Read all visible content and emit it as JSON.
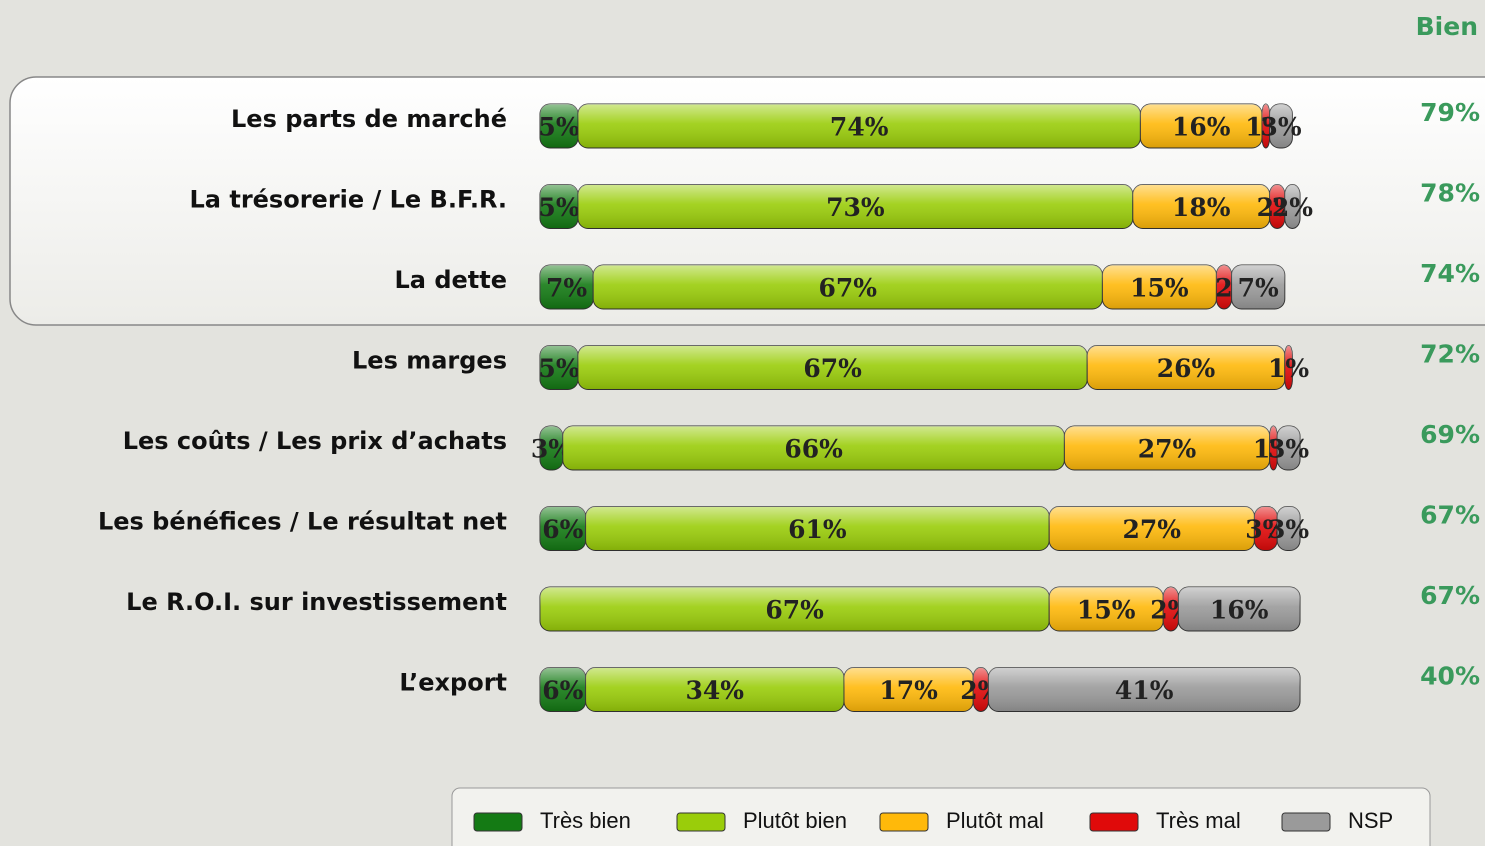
{
  "chart_data": {
    "type": "bar",
    "orientation": "horizontal",
    "stacked": true,
    "categories": [
      "Les parts de marché",
      "La trésorerie / Le B.F.R.",
      "La dette",
      "Les marges",
      "Les coûts / Les prix d’achats",
      "Les bénéfices / Le résultat net",
      "Le R.O.I. sur investissement",
      "L’export"
    ],
    "xlim": [
      0,
      100
    ],
    "series": [
      {
        "name": "Très bien",
        "color": "#147a14",
        "values": [
          5,
          5,
          7,
          5,
          3,
          6,
          null,
          6
        ],
        "value_labels": [
          "5%",
          "5%",
          "7%",
          "5%",
          "3%",
          "6%",
          null,
          "6%"
        ]
      },
      {
        "name": "Plutôt bien",
        "color": "#9acd0a",
        "values": [
          74,
          73,
          67,
          67,
          66,
          61,
          67,
          34
        ],
        "value_labels": [
          "74%",
          "73%",
          "67%",
          "67%",
          "66%",
          "61%",
          "67%",
          "34%"
        ]
      },
      {
        "name": "Plutôt mal",
        "color": "#ffb90a",
        "values": [
          16,
          18,
          15,
          26,
          27,
          27,
          15,
          17
        ],
        "value_labels": [
          "16%",
          "18%",
          "15%",
          "26%",
          "27%",
          "27%",
          "15%",
          "17%"
        ]
      },
      {
        "name": "Très mal",
        "color": "#e00a0a",
        "values": [
          1,
          2,
          2,
          1,
          1,
          3,
          2,
          2
        ],
        "value_labels": [
          "1%",
          "2%",
          "2",
          "1%",
          "1%",
          "3%",
          "2%",
          "2%"
        ]
      },
      {
        "name": "NSP",
        "color": "#9a9a9a",
        "values": [
          3,
          2,
          7,
          null,
          3,
          3,
          16,
          41
        ],
        "value_labels": [
          "3%",
          "2%",
          "7%",
          null,
          "3%",
          "3%",
          "16%",
          "41%"
        ]
      }
    ],
    "totals": {
      "name": "Bien",
      "color": "#3a9a5c",
      "values": [
        79,
        78,
        74,
        72,
        69,
        67,
        67,
        40
      ],
      "value_labels": [
        "79%",
        "78%",
        "74%",
        "72%",
        "69%",
        "67%",
        "67%",
        "40%"
      ]
    },
    "legend": "bottom"
  }
}
